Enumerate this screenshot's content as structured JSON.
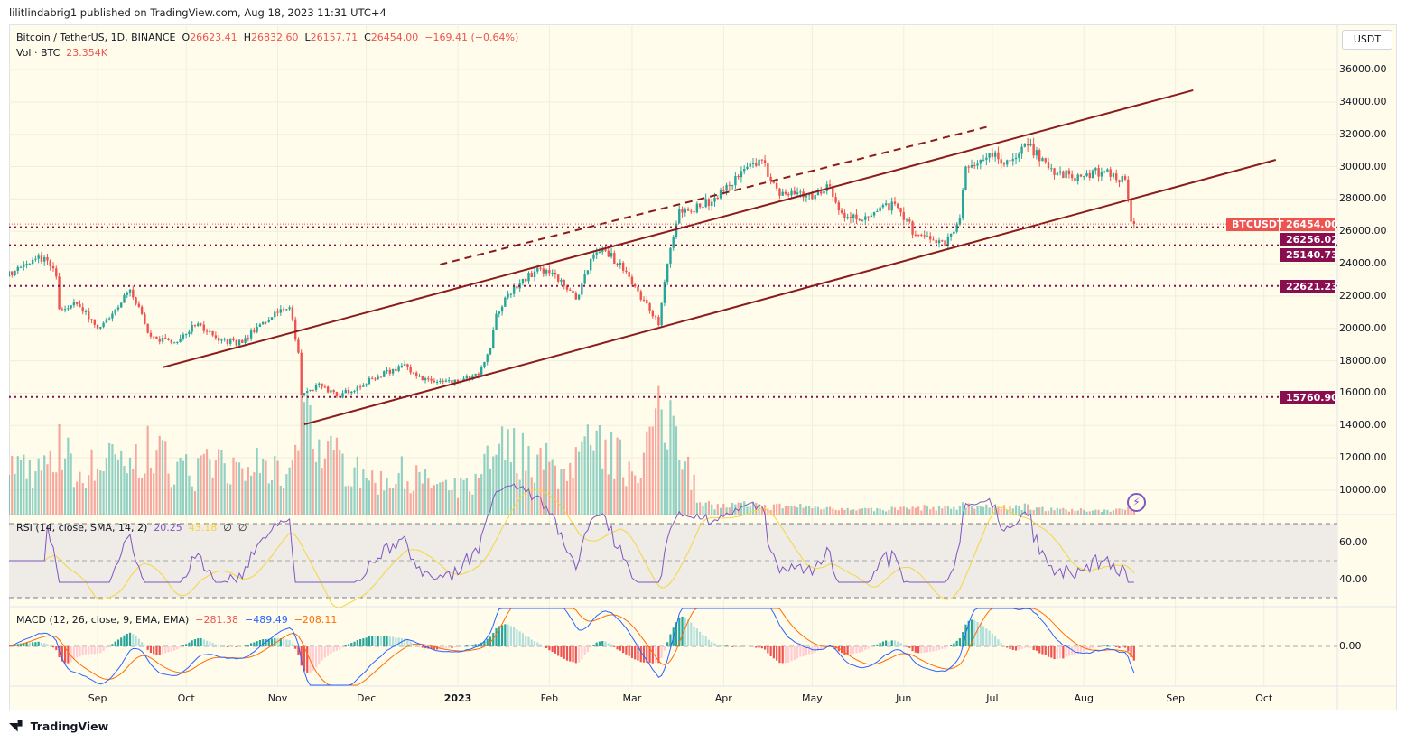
{
  "publisher": "lilitlindabrig1 published on TradingView.com, Aug 18, 2023 11:31 UTC+4",
  "legend": {
    "symbol": "Bitcoin / TetherUS, 1D, BINANCE",
    "o_label": "O",
    "o": "26623.41",
    "h_label": "H",
    "h": "26832.60",
    "l_label": "L",
    "l": "26157.71",
    "c_label": "C",
    "c": "26454.00",
    "change": "−169.41 (−0.64%)",
    "vol_label": "Vol · BTC",
    "vol": "23.354K"
  },
  "currency_button": "USDT",
  "rsi_legend": {
    "label": "RSI (14, close, SMA, 14, 2)",
    "rsi": "20.25",
    "sma": "43.18",
    "extra1": "∅",
    "extra2": "∅"
  },
  "macd_legend": {
    "label": "MACD (12, 26, close, 9, EMA, EMA)",
    "hist": "−281.38",
    "macd": "−489.49",
    "signal": "−208.11"
  },
  "price_axis": [
    "36000.00",
    "34000.00",
    "32000.00",
    "30000.00",
    "28000.00",
    "26000.00",
    "24000.00",
    "22000.00",
    "20000.00",
    "18000.00",
    "16000.00",
    "14000.00",
    "12000.00",
    "10000.00"
  ],
  "rsi_axis": [
    "60.00",
    "40.00"
  ],
  "macd_axis": [
    "0.00"
  ],
  "time_axis": [
    {
      "label": "Sep",
      "date": "2022-09-01"
    },
    {
      "label": "Oct",
      "date": "2022-10-01"
    },
    {
      "label": "Nov",
      "date": "2022-11-01"
    },
    {
      "label": "Dec",
      "date": "2022-12-01"
    },
    {
      "label": "2023",
      "date": "2023-01-01"
    },
    {
      "label": "Feb",
      "date": "2023-02-01"
    },
    {
      "label": "Mar",
      "date": "2023-03-01"
    },
    {
      "label": "Apr",
      "date": "2023-04-01"
    },
    {
      "label": "May",
      "date": "2023-05-01"
    },
    {
      "label": "Jun",
      "date": "2023-06-01"
    },
    {
      "label": "Jul",
      "date": "2023-07-01"
    },
    {
      "label": "Aug",
      "date": "2023-08-01"
    },
    {
      "label": "Sep",
      "date": "2023-09-01"
    },
    {
      "label": "Oct",
      "date": "2023-10-01"
    }
  ],
  "price_tags": {
    "symbol": "BTCUSDT",
    "last": "26454.00",
    "levels": [
      "26256.02",
      "25140.73",
      "22621.23",
      "15760.90"
    ]
  },
  "brand": "TradingView",
  "colors": {
    "up": "#26a69a",
    "down": "#ef5350",
    "trendline": "#8b1c1c",
    "level": "#880e4f",
    "rsi": "#7e57c2",
    "rsi_sma": "#f5d63d",
    "macd": "#2962ff",
    "signal": "#ff6d00",
    "background": "#fffcec"
  },
  "chart_data": {
    "type": "candlestick",
    "symbol": "BTCUSDT",
    "interval": "1D",
    "y_range": [
      10000,
      36000
    ],
    "approx_closes": [
      [
        "2022-08-01",
        23200,
        300
      ],
      [
        "2022-08-08",
        24000,
        280
      ],
      [
        "2022-08-14",
        24400,
        260
      ],
      [
        "2022-08-18",
        23200,
        300
      ],
      [
        "2022-08-19",
        21200,
        420
      ],
      [
        "2022-08-25",
        21500,
        250
      ],
      [
        "2022-09-01",
        20000,
        300
      ],
      [
        "2022-09-08",
        21300,
        330
      ],
      [
        "2022-09-12",
        22400,
        320
      ],
      [
        "2022-09-19",
        19500,
        380
      ],
      [
        "2022-09-26",
        19100,
        300
      ],
      [
        "2022-10-05",
        20300,
        250
      ],
      [
        "2022-10-13",
        19300,
        330
      ],
      [
        "2022-10-20",
        19100,
        200
      ],
      [
        "2022-10-25",
        20100,
        300
      ],
      [
        "2022-10-30",
        20700,
        250
      ],
      [
        "2022-11-05",
        21300,
        230
      ],
      [
        "2022-11-08",
        18500,
        550
      ],
      [
        "2022-11-09",
        15900,
        700
      ],
      [
        "2022-11-15",
        16600,
        380
      ],
      [
        "2022-11-21",
        15800,
        330
      ],
      [
        "2022-11-28",
        16400,
        250
      ],
      [
        "2022-12-05",
        17000,
        200
      ],
      [
        "2022-12-14",
        17800,
        250
      ],
      [
        "2022-12-20",
        16800,
        200
      ],
      [
        "2022-12-30",
        16600,
        150
      ],
      [
        "2023-01-08",
        17100,
        200
      ],
      [
        "2023-01-12",
        18800,
        350
      ],
      [
        "2023-01-14",
        20900,
        400
      ],
      [
        "2023-01-20",
        22600,
        380
      ],
      [
        "2023-01-29",
        23700,
        330
      ],
      [
        "2023-02-05",
        23000,
        250
      ],
      [
        "2023-02-10",
        21800,
        300
      ],
      [
        "2023-02-15",
        24300,
        420
      ],
      [
        "2023-02-20",
        24800,
        380
      ],
      [
        "2023-02-27",
        23500,
        300
      ],
      [
        "2023-03-03",
        22300,
        320
      ],
      [
        "2023-03-10",
        20200,
        550
      ],
      [
        "2023-03-13",
        24000,
        650
      ],
      [
        "2023-03-17",
        27400,
        500
      ],
      [
        "2023-03-24",
        27500,
        60
      ],
      [
        "2023-04-01",
        28500,
        50
      ],
      [
        "2023-04-11",
        30200,
        60
      ],
      [
        "2023-04-14",
        30400,
        45
      ],
      [
        "2023-04-20",
        28200,
        50
      ],
      [
        "2023-04-26",
        28400,
        55
      ],
      [
        "2023-05-01",
        28000,
        45
      ],
      [
        "2023-05-06",
        28900,
        40
      ],
      [
        "2023-05-12",
        26800,
        45
      ],
      [
        "2023-05-20",
        26900,
        30
      ],
      [
        "2023-05-29",
        27700,
        35
      ],
      [
        "2023-06-05",
        25800,
        40
      ],
      [
        "2023-06-15",
        25100,
        45
      ],
      [
        "2023-06-20",
        26800,
        50
      ],
      [
        "2023-06-22",
        30000,
        65
      ],
      [
        "2023-07-01",
        30600,
        40
      ],
      [
        "2023-07-06",
        30400,
        45
      ],
      [
        "2023-07-13",
        31300,
        50
      ],
      [
        "2023-07-20",
        29900,
        35
      ],
      [
        "2023-07-28",
        29300,
        25
      ],
      [
        "2023-08-08",
        29700,
        30
      ],
      [
        "2023-08-15",
        29200,
        25
      ],
      [
        "2023-08-17",
        26600,
        45
      ],
      [
        "2023-08-18",
        26454,
        23
      ]
    ],
    "approx_closes_columns": [
      "date",
      "close",
      "volume_k_btc"
    ],
    "last": {
      "open": 26623.41,
      "high": 26832.6,
      "low": 26157.71,
      "close": 26454.0
    },
    "horizontal_levels": [
      26256.02,
      25140.73,
      22621.23,
      15760.9
    ],
    "trendlines": [
      {
        "style": "solid",
        "from": [
          "2022-09-23",
          17590
        ],
        "to": [
          "2023-09-07",
          34720
        ]
      },
      {
        "style": "solid",
        "from": [
          "2022-11-10",
          14070
        ],
        "to": [
          "2023-10-05",
          30420
        ]
      },
      {
        "style": "dashed",
        "from": [
          "2022-12-26",
          23950
        ],
        "to": [
          "2023-06-30",
          32490
        ]
      }
    ],
    "indicators": {
      "rsi": {
        "period": 14,
        "sma": 14,
        "levels": [
          70,
          50,
          30
        ]
      },
      "macd": {
        "fast": 12,
        "slow": 26,
        "signal": 9
      }
    }
  }
}
